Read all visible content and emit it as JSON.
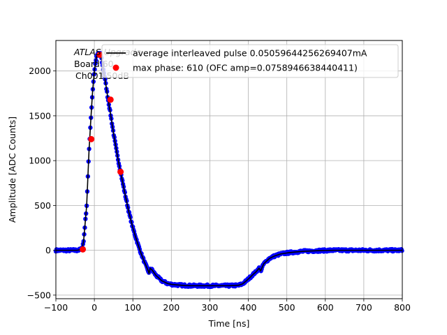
{
  "chart_data": {
    "type": "scatter",
    "title": "",
    "xlabel": "Time [ns]",
    "ylabel": "Amplitude [ADC Counts]",
    "xlim": [
      -100,
      800
    ],
    "ylim": [
      -540,
      2340
    ],
    "xticks": [
      -100,
      0,
      100,
      200,
      300,
      400,
      500,
      600,
      700,
      800
    ],
    "yticks": [
      -500,
      0,
      500,
      1000,
      1500,
      2000
    ],
    "grid": true,
    "annotation_lines": [
      "ATLAS Upgrade",
      "Board 60",
      "Ch001 50dB"
    ],
    "legend": {
      "placement": "top-right",
      "entries": [
        {
          "label": "average interleaved pulse 0.05059644256269407mA",
          "marker": "line",
          "color": "#000000"
        },
        {
          "label": "max phase: 610 (OFC amp=0.0758946638440411)",
          "marker": "dot",
          "color": "#ff0000"
        }
      ]
    },
    "series": [
      {
        "name": "average interleaved pulse 0.05059644256269407mA",
        "style": "line+dots",
        "line_color": "#000000",
        "dot_color": "#0000ff",
        "x": [
          -100,
          -80,
          -60,
          -45,
          -38,
          -32,
          -28,
          -25,
          -20,
          -17,
          -14,
          -10,
          -5,
          0,
          5,
          10,
          15,
          18,
          22,
          28,
          35,
          42,
          50,
          60,
          70,
          80,
          90,
          100,
          110,
          120,
          130,
          140,
          142,
          145,
          150,
          160,
          175,
          190,
          200,
          225,
          250,
          275,
          300,
          325,
          350,
          375,
          385,
          395,
          405,
          412,
          420,
          428,
          432,
          440,
          455,
          470,
          485,
          500,
          520,
          540,
          560,
          580,
          600,
          620,
          650,
          700,
          750,
          800
        ],
        "y": [
          0,
          0,
          0,
          0,
          5,
          20,
          100,
          250,
          500,
          800,
          1100,
          1400,
          1750,
          2000,
          2150,
          2200,
          2190,
          2150,
          2050,
          1900,
          1700,
          1520,
          1300,
          1050,
          830,
          620,
          420,
          250,
          110,
          -20,
          -130,
          -230,
          -260,
          -200,
          -220,
          -280,
          -340,
          -370,
          -380,
          -390,
          -395,
          -395,
          -395,
          -395,
          -395,
          -390,
          -375,
          -340,
          -300,
          -270,
          -240,
          -200,
          -230,
          -150,
          -90,
          -60,
          -40,
          -30,
          -20,
          -12,
          -8,
          -4,
          -2,
          0,
          0,
          0,
          0,
          0
        ]
      },
      {
        "name": "max phase: 610 (OFC amp=0.0758946638440411)",
        "style": "dots",
        "dot_color": "#ff0000",
        "x": [
          -30,
          -8,
          14,
          42,
          68
        ],
        "y": [
          10,
          1240,
          2180,
          1680,
          875
        ]
      }
    ]
  }
}
